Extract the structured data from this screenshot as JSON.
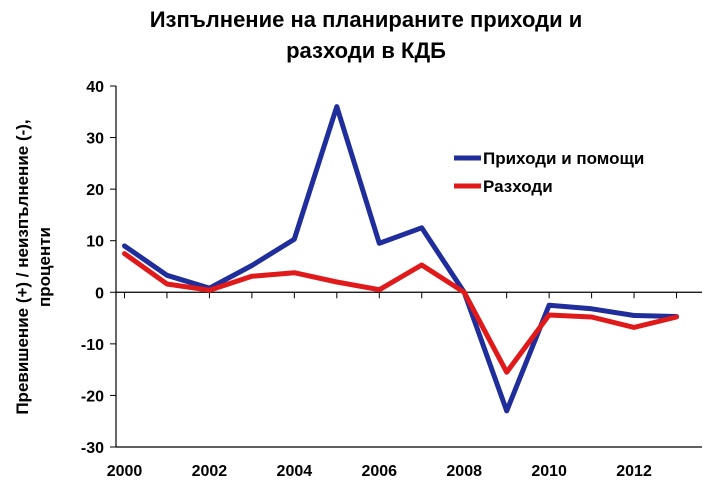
{
  "chart_data": {
    "type": "line",
    "title": "Изпълнение на планираните приходи и разходи в КДБ",
    "title_lines": [
      "Изпълнение на планираните приходи и",
      "разходи в КДБ"
    ],
    "xlabel": "",
    "ylabel": "Превишение (+) / неизпълнение (-), проценти",
    "ylabel_lines": [
      "Превишение (+) / неизпълнение (-),",
      "проценти"
    ],
    "x": [
      2000,
      2001,
      2002,
      2003,
      2004,
      2005,
      2006,
      2007,
      2008,
      2009,
      2010,
      2011,
      2012,
      2013
    ],
    "x_ticks": [
      2000,
      2002,
      2004,
      2006,
      2008,
      2010,
      2012
    ],
    "ylim": [
      -30,
      40
    ],
    "y_ticks": [
      -30,
      -20,
      -10,
      0,
      10,
      20,
      30,
      40
    ],
    "grid": false,
    "legend_position": "upper-right inside plot",
    "series": [
      {
        "name": "Приходи и помощи",
        "color": "#1f2e9a",
        "values": [
          9.0,
          3.3,
          0.8,
          5.2,
          10.3,
          36.0,
          9.5,
          12.5,
          0.0,
          -23.0,
          -2.5,
          -3.2,
          -4.5,
          -4.7
        ]
      },
      {
        "name": "Разходи",
        "color": "#e01a1a",
        "values": [
          7.5,
          1.6,
          0.4,
          3.1,
          3.8,
          2.0,
          0.5,
          5.3,
          0.0,
          -15.5,
          -4.4,
          -4.8,
          -6.8,
          -4.8
        ]
      }
    ]
  }
}
